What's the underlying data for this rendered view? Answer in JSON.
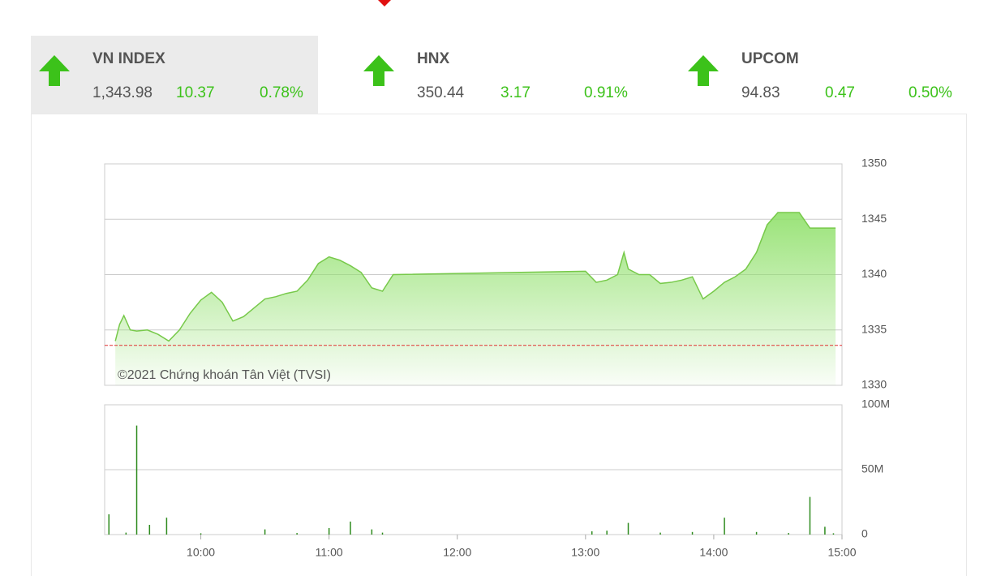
{
  "indices": [
    {
      "name": "VN INDEX",
      "value": "1,343.98",
      "change": "10.37",
      "percent": "0.78%"
    },
    {
      "name": "HNX",
      "value": "350.44",
      "change": "3.17",
      "percent": "0.91%"
    },
    {
      "name": "UPCOM",
      "value": "94.83",
      "change": "0.47",
      "percent": "0.50%"
    }
  ],
  "chart_data": [
    {
      "type": "area",
      "annotation": "©2021 Chứng khoán Tân Việt (TVSI)",
      "color": "#77c94a",
      "reference": 1333.61,
      "reference_color": "#e03030",
      "x": [
        "09:20",
        "09:22",
        "09:24",
        "09:27",
        "09:30",
        "09:35",
        "09:40",
        "09:45",
        "09:50",
        "09:55",
        "10:00",
        "10:05",
        "10:10",
        "10:15",
        "10:20",
        "10:25",
        "10:30",
        "10:35",
        "10:40",
        "10:45",
        "10:50",
        "10:55",
        "11:00",
        "11:05",
        "11:10",
        "11:15",
        "11:20",
        "11:25",
        "11:30",
        "13:00",
        "13:05",
        "13:10",
        "13:15",
        "13:18",
        "13:20",
        "13:25",
        "13:30",
        "13:35",
        "13:40",
        "13:45",
        "13:50",
        "13:55",
        "14:00",
        "14:05",
        "14:10",
        "14:15",
        "14:20",
        "14:25",
        "14:30",
        "14:35",
        "14:40",
        "14:45",
        "14:50",
        "14:57"
      ],
      "values": [
        1334.0,
        1335.5,
        1336.3,
        1335.0,
        1334.9,
        1335.0,
        1334.6,
        1334.0,
        1335.0,
        1336.5,
        1337.7,
        1338.4,
        1337.5,
        1335.8,
        1336.2,
        1337.0,
        1337.8,
        1338.0,
        1338.3,
        1338.5,
        1339.5,
        1341.0,
        1341.6,
        1341.3,
        1340.8,
        1340.2,
        1338.8,
        1338.5,
        1340.0,
        1340.3,
        1339.3,
        1339.5,
        1340.0,
        1342.0,
        1340.5,
        1340.0,
        1340.0,
        1339.2,
        1339.3,
        1339.5,
        1339.8,
        1337.8,
        1338.5,
        1339.3,
        1339.8,
        1340.5,
        1342.0,
        1344.5,
        1345.6,
        1345.6,
        1345.6,
        1344.2,
        1344.2,
        1344.2
      ],
      "xlim": [
        "09:15",
        "15:00"
      ],
      "ylim": [
        1330,
        1350
      ],
      "yticks": [
        1330,
        1335,
        1340,
        1345,
        1350
      ],
      "grid": true
    },
    {
      "type": "bar",
      "color": "#2e8b1e",
      "x": [
        "09:17",
        "09:25",
        "09:30",
        "09:36",
        "09:44",
        "10:00",
        "10:30",
        "10:45",
        "11:00",
        "11:10",
        "11:20",
        "11:25",
        "13:03",
        "13:10",
        "13:20",
        "13:35",
        "13:50",
        "14:05",
        "14:20",
        "14:35",
        "14:45",
        "14:52",
        "14:56"
      ],
      "values": [
        15600000,
        1500000,
        84000000,
        7500000,
        13000000,
        1000000,
        4000000,
        1200000,
        5000000,
        10000000,
        4000000,
        1500000,
        2500000,
        3000000,
        9000000,
        1500000,
        2000000,
        13000000,
        2000000,
        1200000,
        29000000,
        6000000,
        1000000
      ],
      "xlim": [
        "09:15",
        "15:00"
      ],
      "ylim": [
        0,
        100000000
      ],
      "yticks": [
        {
          "value": 0,
          "label": "0"
        },
        {
          "value": 50000000,
          "label": "50M"
        },
        {
          "value": 100000000,
          "label": "100M"
        }
      ],
      "xticks": [
        "10:00",
        "11:00",
        "12:00",
        "13:00",
        "14:00",
        "15:00"
      ],
      "grid": true
    }
  ]
}
